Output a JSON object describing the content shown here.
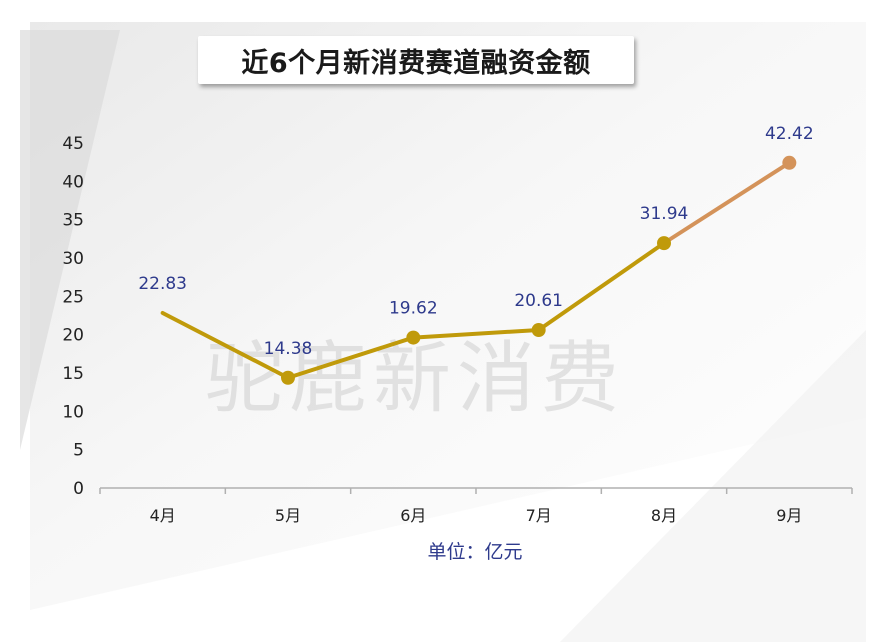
{
  "title": "近6个月新消费赛道融资金额",
  "unit_label": "单位：亿元",
  "watermark": "驼鹿新消费",
  "colors": {
    "line_main": "#c09a0a",
    "line_last": "#d4935a",
    "label": "#2e3a8c",
    "axis": "#b0b0b0"
  },
  "chart_data": {
    "type": "line",
    "title": "近6个月新消费赛道融资金额",
    "categories": [
      "4月",
      "5月",
      "6月",
      "7月",
      "8月",
      "9月"
    ],
    "values": [
      22.83,
      14.38,
      19.62,
      20.61,
      31.94,
      42.42
    ],
    "data_labels": [
      "22.83",
      "14.38",
      "19.62",
      "20.61",
      "31.94",
      "42.42"
    ],
    "yticks": [
      "0",
      "5",
      "10",
      "15",
      "20",
      "25",
      "30",
      "35",
      "40",
      "45"
    ],
    "ylim": [
      0,
      45
    ],
    "xlabel": "单位：亿元",
    "ylabel": "",
    "grid": false,
    "markers": [
      false,
      true,
      true,
      true,
      true,
      true
    ]
  }
}
